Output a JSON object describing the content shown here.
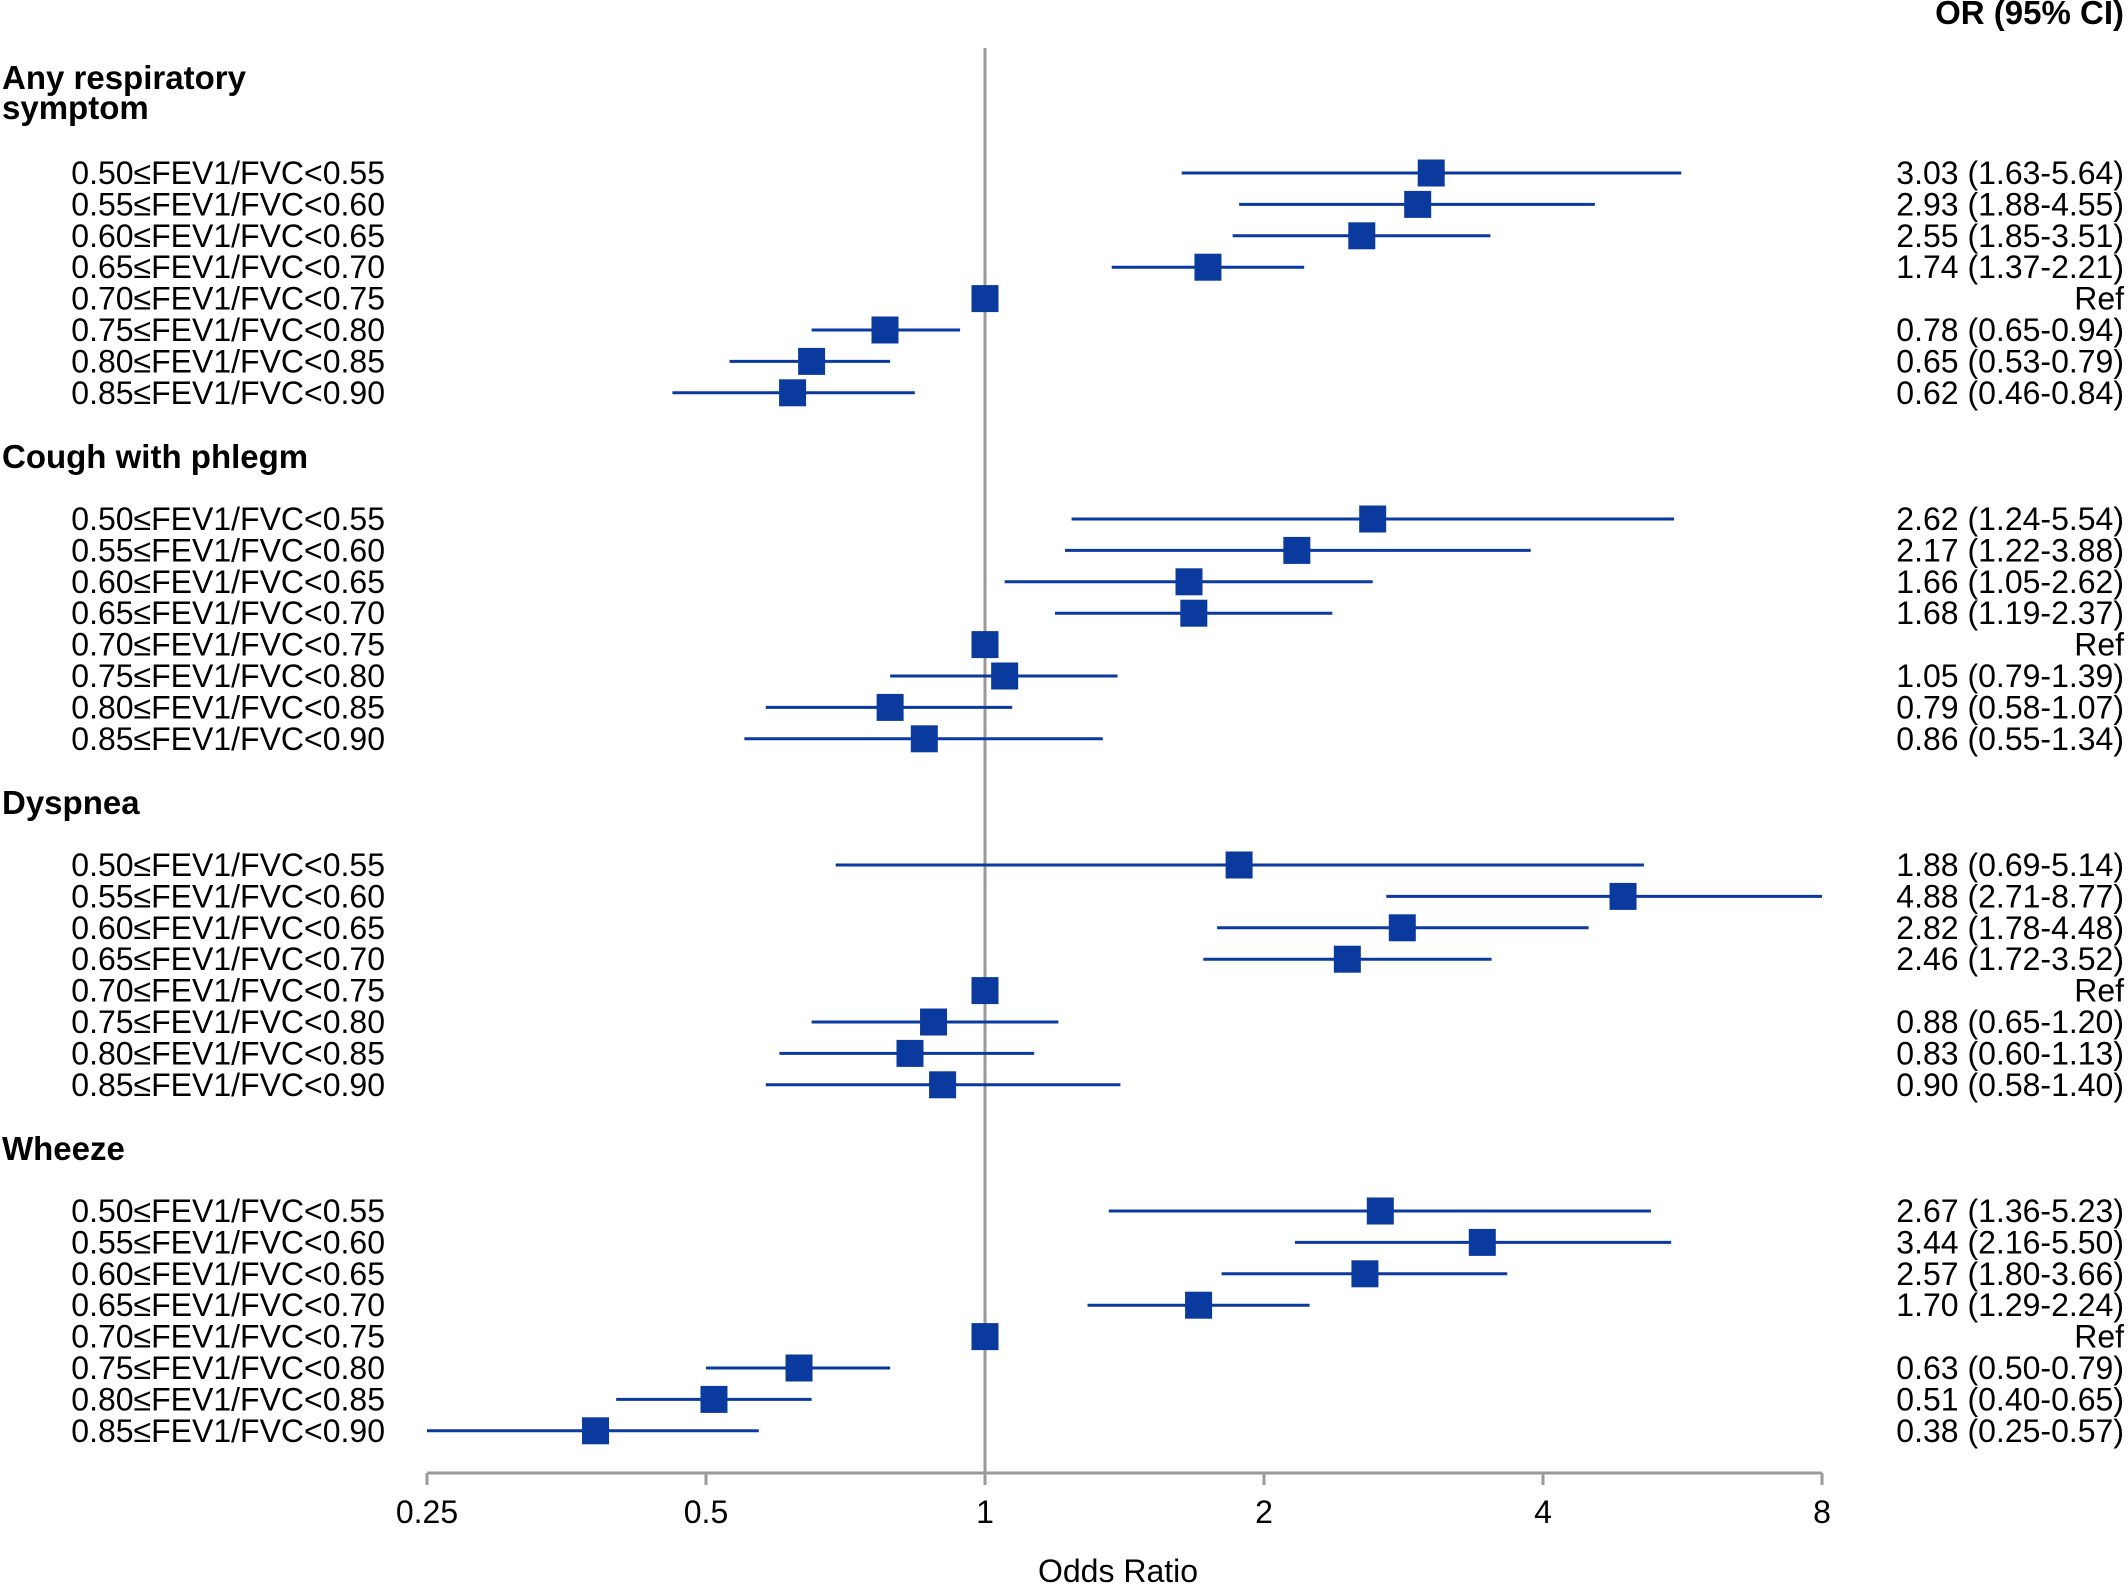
{
  "chart_data": {
    "type": "forest",
    "xlabel": "Odds Ratio",
    "x_scale": "log2",
    "xlim": [
      0.25,
      8
    ],
    "x_ticks": [
      "0.25",
      "0.5",
      "1",
      "2",
      "4",
      "8"
    ],
    "reference_line": 1,
    "column_header": "OR (95% CI)",
    "marker_color": "#0a3a9e",
    "groups": [
      {
        "title": "Any respiratory symptom",
        "title_lines": [
          "Any respiratory",
          "symptom"
        ],
        "rows": [
          {
            "label": "0.50≤FEV1/FVC<0.55",
            "or": 3.03,
            "lo": 1.63,
            "hi": 5.64,
            "text": "3.03 (1.63-5.64)"
          },
          {
            "label": "0.55≤FEV1/FVC<0.60",
            "or": 2.93,
            "lo": 1.88,
            "hi": 4.55,
            "text": "2.93 (1.88-4.55)"
          },
          {
            "label": "0.60≤FEV1/FVC<0.65",
            "or": 2.55,
            "lo": 1.85,
            "hi": 3.51,
            "text": "2.55 (1.85-3.51)"
          },
          {
            "label": "0.65≤FEV1/FVC<0.70",
            "or": 1.74,
            "lo": 1.37,
            "hi": 2.21,
            "text": "1.74 (1.37-2.21)"
          },
          {
            "label": "0.70≤FEV1/FVC<0.75",
            "or": 1,
            "lo": null,
            "hi": null,
            "text": "Ref"
          },
          {
            "label": "0.75≤FEV1/FVC<0.80",
            "or": 0.78,
            "lo": 0.65,
            "hi": 0.94,
            "text": "0.78 (0.65-0.94)"
          },
          {
            "label": "0.80≤FEV1/FVC<0.85",
            "or": 0.65,
            "lo": 0.53,
            "hi": 0.79,
            "text": "0.65 (0.53-0.79)"
          },
          {
            "label": "0.85≤FEV1/FVC<0.90",
            "or": 0.62,
            "lo": 0.46,
            "hi": 0.84,
            "text": "0.62 (0.46-0.84)"
          }
        ]
      },
      {
        "title": "Cough with phlegm",
        "title_lines": [
          "Cough with phlegm"
        ],
        "rows": [
          {
            "label": "0.50≤FEV1/FVC<0.55",
            "or": 2.62,
            "lo": 1.24,
            "hi": 5.54,
            "text": "2.62 (1.24-5.54)"
          },
          {
            "label": "0.55≤FEV1/FVC<0.60",
            "or": 2.17,
            "lo": 1.22,
            "hi": 3.88,
            "text": "2.17 (1.22-3.88)"
          },
          {
            "label": "0.60≤FEV1/FVC<0.65",
            "or": 1.66,
            "lo": 1.05,
            "hi": 2.62,
            "text": "1.66 (1.05-2.62)"
          },
          {
            "label": "0.65≤FEV1/FVC<0.70",
            "or": 1.68,
            "lo": 1.19,
            "hi": 2.37,
            "text": "1.68 (1.19-2.37)"
          },
          {
            "label": "0.70≤FEV1/FVC<0.75",
            "or": 1,
            "lo": null,
            "hi": null,
            "text": "Ref"
          },
          {
            "label": "0.75≤FEV1/FVC<0.80",
            "or": 1.05,
            "lo": 0.79,
            "hi": 1.39,
            "text": "1.05 (0.79-1.39)"
          },
          {
            "label": "0.80≤FEV1/FVC<0.85",
            "or": 0.79,
            "lo": 0.58,
            "hi": 1.07,
            "text": "0.79 (0.58-1.07)"
          },
          {
            "label": "0.85≤FEV1/FVC<0.90",
            "or": 0.86,
            "lo": 0.55,
            "hi": 1.34,
            "text": "0.86 (0.55-1.34)"
          }
        ]
      },
      {
        "title": "Dyspnea",
        "title_lines": [
          "Dyspnea"
        ],
        "rows": [
          {
            "label": "0.50≤FEV1/FVC<0.55",
            "or": 1.88,
            "lo": 0.69,
            "hi": 5.14,
            "text": "1.88 (0.69-5.14)"
          },
          {
            "label": "0.55≤FEV1/FVC<0.60",
            "or": 4.88,
            "lo": 2.71,
            "hi": 8.77,
            "text": "4.88 (2.71-8.77)"
          },
          {
            "label": "0.60≤FEV1/FVC<0.65",
            "or": 2.82,
            "lo": 1.78,
            "hi": 4.48,
            "text": "2.82 (1.78-4.48)"
          },
          {
            "label": "0.65≤FEV1/FVC<0.70",
            "or": 2.46,
            "lo": 1.72,
            "hi": 3.52,
            "text": "2.46 (1.72-3.52)"
          },
          {
            "label": "0.70≤FEV1/FVC<0.75",
            "or": 1,
            "lo": null,
            "hi": null,
            "text": "Ref"
          },
          {
            "label": "0.75≤FEV1/FVC<0.80",
            "or": 0.88,
            "lo": 0.65,
            "hi": 1.2,
            "text": "0.88 (0.65-1.20)"
          },
          {
            "label": "0.80≤FEV1/FVC<0.85",
            "or": 0.83,
            "lo": 0.6,
            "hi": 1.13,
            "text": "0.83 (0.60-1.13)"
          },
          {
            "label": "0.85≤FEV1/FVC<0.90",
            "or": 0.9,
            "lo": 0.58,
            "hi": 1.4,
            "text": "0.90 (0.58-1.40)"
          }
        ]
      },
      {
        "title": "Wheeze",
        "title_lines": [
          "Wheeze"
        ],
        "rows": [
          {
            "label": "0.50≤FEV1/FVC<0.55",
            "or": 2.67,
            "lo": 1.36,
            "hi": 5.23,
            "text": "2.67 (1.36-5.23)"
          },
          {
            "label": "0.55≤FEV1/FVC<0.60",
            "or": 3.44,
            "lo": 2.16,
            "hi": 5.5,
            "text": "3.44 (2.16-5.50)"
          },
          {
            "label": "0.60≤FEV1/FVC<0.65",
            "or": 2.57,
            "lo": 1.8,
            "hi": 3.66,
            "text": "2.57 (1.80-3.66)"
          },
          {
            "label": "0.65≤FEV1/FVC<0.70",
            "or": 1.7,
            "lo": 1.29,
            "hi": 2.24,
            "text": "1.70 (1.29-2.24)"
          },
          {
            "label": "0.70≤FEV1/FVC<0.75",
            "or": 1,
            "lo": null,
            "hi": null,
            "text": "Ref"
          },
          {
            "label": "0.75≤FEV1/FVC<0.80",
            "or": 0.63,
            "lo": 0.5,
            "hi": 0.79,
            "text": "0.63 (0.50-0.79)"
          },
          {
            "label": "0.80≤FEV1/FVC<0.85",
            "or": 0.51,
            "lo": 0.4,
            "hi": 0.65,
            "text": "0.51 (0.40-0.65)"
          },
          {
            "label": "0.85≤FEV1/FVC<0.90",
            "or": 0.38,
            "lo": 0.25,
            "hi": 0.57,
            "text": "0.38 (0.25-0.57)"
          }
        ]
      }
    ]
  }
}
